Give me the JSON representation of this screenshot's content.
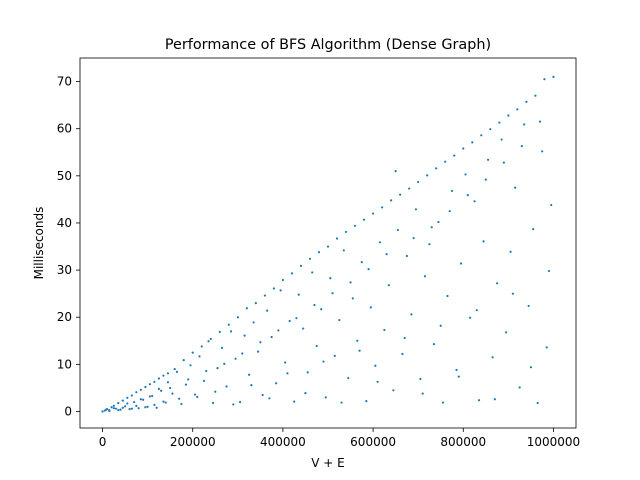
{
  "chart_data": {
    "type": "scatter",
    "title": "Performance of BFS Algorithm (Dense Graph)",
    "xlabel": "V + E",
    "ylabel": "Milliseconds",
    "xlim": [
      -50000,
      1050000
    ],
    "ylim": [
      -3.5,
      75
    ],
    "xticks": [
      0,
      200000,
      400000,
      600000,
      800000,
      1000000
    ],
    "yticks": [
      0,
      10,
      20,
      30,
      40,
      50,
      60,
      70
    ],
    "grid": false,
    "legend": "none",
    "point_color": "#1f77b4",
    "series": [
      {
        "points": [
          [
            0,
            0.0
          ],
          [
            5000,
            0.2
          ],
          [
            10000,
            0.5
          ],
          [
            15000,
            0.3
          ],
          [
            20000,
            0.9
          ],
          [
            25000,
            1.2
          ],
          [
            30000,
            0.6
          ],
          [
            35000,
            1.8
          ],
          [
            40000,
            0.4
          ],
          [
            45000,
            2.3
          ],
          [
            50000,
            1.1
          ],
          [
            55000,
            2.9
          ],
          [
            60000,
            0.5
          ],
          [
            65000,
            3.4
          ],
          [
            70000,
            2.0
          ],
          [
            75000,
            4.1
          ],
          [
            80000,
            0.7
          ],
          [
            85000,
            4.6
          ],
          [
            90000,
            2.5
          ],
          [
            95000,
            5.2
          ],
          [
            100000,
            1.0
          ],
          [
            105000,
            5.8
          ],
          [
            110000,
            3.3
          ],
          [
            115000,
            6.3
          ],
          [
            120000,
            0.8
          ],
          [
            125000,
            7.0
          ],
          [
            130000,
            4.4
          ],
          [
            135000,
            7.6
          ],
          [
            140000,
            1.9
          ],
          [
            145000,
            8.1
          ],
          [
            150000,
            5.0
          ],
          [
            160000,
            9.0
          ],
          [
            170000,
            2.7
          ],
          [
            180000,
            10.9
          ],
          [
            190000,
            6.8
          ],
          [
            200000,
            12.5
          ],
          [
            210000,
            3.1
          ],
          [
            220000,
            13.8
          ],
          [
            230000,
            8.6
          ],
          [
            240000,
            15.4
          ],
          [
            250000,
            4.2
          ],
          [
            260000,
            16.9
          ],
          [
            270000,
            10.1
          ],
          [
            280000,
            18.4
          ],
          [
            290000,
            1.5
          ],
          [
            300000,
            20.0
          ],
          [
            310000,
            12.3
          ],
          [
            320000,
            21.9
          ],
          [
            330000,
            5.6
          ],
          [
            340000,
            23.0
          ],
          [
            350000,
            14.7
          ],
          [
            360000,
            24.6
          ],
          [
            370000,
            2.8
          ],
          [
            380000,
            26.1
          ],
          [
            390000,
            17.2
          ],
          [
            400000,
            27.9
          ],
          [
            410000,
            8.1
          ],
          [
            420000,
            29.3
          ],
          [
            430000,
            19.8
          ],
          [
            440000,
            30.9
          ],
          [
            450000,
            3.9
          ],
          [
            460000,
            32.4
          ],
          [
            470000,
            22.6
          ],
          [
            480000,
            33.8
          ],
          [
            490000,
            10.6
          ],
          [
            500000,
            35.0
          ],
          [
            510000,
            25.1
          ],
          [
            520000,
            36.7
          ],
          [
            530000,
            1.9
          ],
          [
            540000,
            38.1
          ],
          [
            550000,
            27.4
          ],
          [
            560000,
            39.4
          ],
          [
            570000,
            12.9
          ],
          [
            580000,
            40.7
          ],
          [
            590000,
            30.2
          ],
          [
            600000,
            42.0
          ],
          [
            610000,
            6.3
          ],
          [
            620000,
            43.3
          ],
          [
            630000,
            33.4
          ],
          [
            640000,
            44.8
          ],
          [
            650000,
            51.0
          ],
          [
            660000,
            46.0
          ],
          [
            670000,
            15.6
          ],
          [
            680000,
            47.3
          ],
          [
            690000,
            36.8
          ],
          [
            700000,
            48.7
          ],
          [
            710000,
            3.8
          ],
          [
            720000,
            50.1
          ],
          [
            730000,
            39.1
          ],
          [
            740000,
            51.6
          ],
          [
            750000,
            18.2
          ],
          [
            760000,
            53.0
          ],
          [
            770000,
            42.5
          ],
          [
            780000,
            54.3
          ],
          [
            790000,
            7.4
          ],
          [
            800000,
            55.8
          ],
          [
            810000,
            45.9
          ],
          [
            820000,
            57.1
          ],
          [
            830000,
            21.5
          ],
          [
            840000,
            58.6
          ],
          [
            850000,
            49.2
          ],
          [
            860000,
            59.9
          ],
          [
            870000,
            2.6
          ],
          [
            880000,
            61.3
          ],
          [
            890000,
            52.8
          ],
          [
            900000,
            62.8
          ],
          [
            910000,
            25.0
          ],
          [
            920000,
            64.1
          ],
          [
            930000,
            56.3
          ],
          [
            940000,
            65.7
          ],
          [
            950000,
            9.4
          ],
          [
            960000,
            67.0
          ],
          [
            970000,
            61.5
          ],
          [
            980000,
            70.5
          ],
          [
            990000,
            29.8
          ],
          [
            1000000,
            71.0
          ],
          [
            995000,
            43.8
          ],
          [
            985000,
            13.6
          ],
          [
            975000,
            55.2
          ],
          [
            965000,
            1.8
          ],
          [
            955000,
            38.7
          ],
          [
            945000,
            22.4
          ],
          [
            935000,
            60.9
          ],
          [
            925000,
            5.1
          ],
          [
            915000,
            47.5
          ],
          [
            905000,
            33.9
          ],
          [
            895000,
            16.8
          ],
          [
            885000,
            57.7
          ],
          [
            875000,
            27.2
          ],
          [
            865000,
            11.5
          ],
          [
            855000,
            53.4
          ],
          [
            845000,
            36.1
          ],
          [
            835000,
            2.4
          ],
          [
            825000,
            44.6
          ],
          [
            815000,
            19.9
          ],
          [
            805000,
            50.3
          ],
          [
            795000,
            31.4
          ],
          [
            785000,
            8.8
          ],
          [
            775000,
            46.8
          ],
          [
            765000,
            24.5
          ],
          [
            755000,
            1.9
          ],
          [
            745000,
            40.2
          ],
          [
            735000,
            14.3
          ],
          [
            725000,
            35.5
          ],
          [
            715000,
            28.7
          ],
          [
            705000,
            6.9
          ],
          [
            695000,
            42.9
          ],
          [
            685000,
            20.6
          ],
          [
            675000,
            33.0
          ],
          [
            665000,
            12.2
          ],
          [
            655000,
            38.5
          ],
          [
            645000,
            4.5
          ],
          [
            635000,
            26.8
          ],
          [
            625000,
            17.3
          ],
          [
            615000,
            35.9
          ],
          [
            605000,
            9.7
          ],
          [
            595000,
            22.1
          ],
          [
            585000,
            2.2
          ],
          [
            575000,
            31.7
          ],
          [
            565000,
            15.0
          ],
          [
            555000,
            24.0
          ],
          [
            545000,
            7.1
          ],
          [
            535000,
            34.2
          ],
          [
            525000,
            19.4
          ],
          [
            515000,
            11.8
          ],
          [
            505000,
            28.3
          ],
          [
            495000,
            3.0
          ],
          [
            485000,
            21.7
          ],
          [
            475000,
            13.9
          ],
          [
            465000,
            29.5
          ],
          [
            455000,
            8.3
          ],
          [
            445000,
            17.6
          ],
          [
            435000,
            24.8
          ],
          [
            425000,
            2.1
          ],
          [
            415000,
            19.2
          ],
          [
            405000,
            10.4
          ],
          [
            395000,
            25.7
          ],
          [
            385000,
            6.0
          ],
          [
            375000,
            15.8
          ],
          [
            365000,
            21.4
          ],
          [
            355000,
            3.5
          ],
          [
            345000,
            12.7
          ],
          [
            335000,
            18.9
          ],
          [
            325000,
            7.8
          ],
          [
            315000,
            16.1
          ],
          [
            305000,
            2.0
          ],
          [
            295000,
            11.2
          ],
          [
            285000,
            17.0
          ],
          [
            275000,
            5.3
          ],
          [
            265000,
            13.5
          ],
          [
            255000,
            9.2
          ],
          [
            245000,
            1.8
          ],
          [
            235000,
            14.9
          ],
          [
            225000,
            6.5
          ],
          [
            215000,
            11.7
          ],
          [
            205000,
            3.6
          ],
          [
            195000,
            9.8
          ],
          [
            185000,
            5.7
          ],
          [
            175000,
            1.6
          ],
          [
            165000,
            8.4
          ],
          [
            155000,
            3.8
          ],
          [
            145000,
            6.2
          ],
          [
            135000,
            2.1
          ],
          [
            125000,
            4.8
          ],
          [
            115000,
            1.4
          ],
          [
            105000,
            3.2
          ],
          [
            95000,
            0.9
          ],
          [
            85000,
            2.6
          ],
          [
            75000,
            1.2
          ],
          [
            65000,
            0.6
          ],
          [
            55000,
            1.7
          ],
          [
            45000,
            0.8
          ],
          [
            35000,
            0.3
          ],
          [
            25000,
            0.7
          ],
          [
            15000,
            0.1
          ],
          [
            8000,
            0.4
          ]
        ]
      }
    ]
  }
}
